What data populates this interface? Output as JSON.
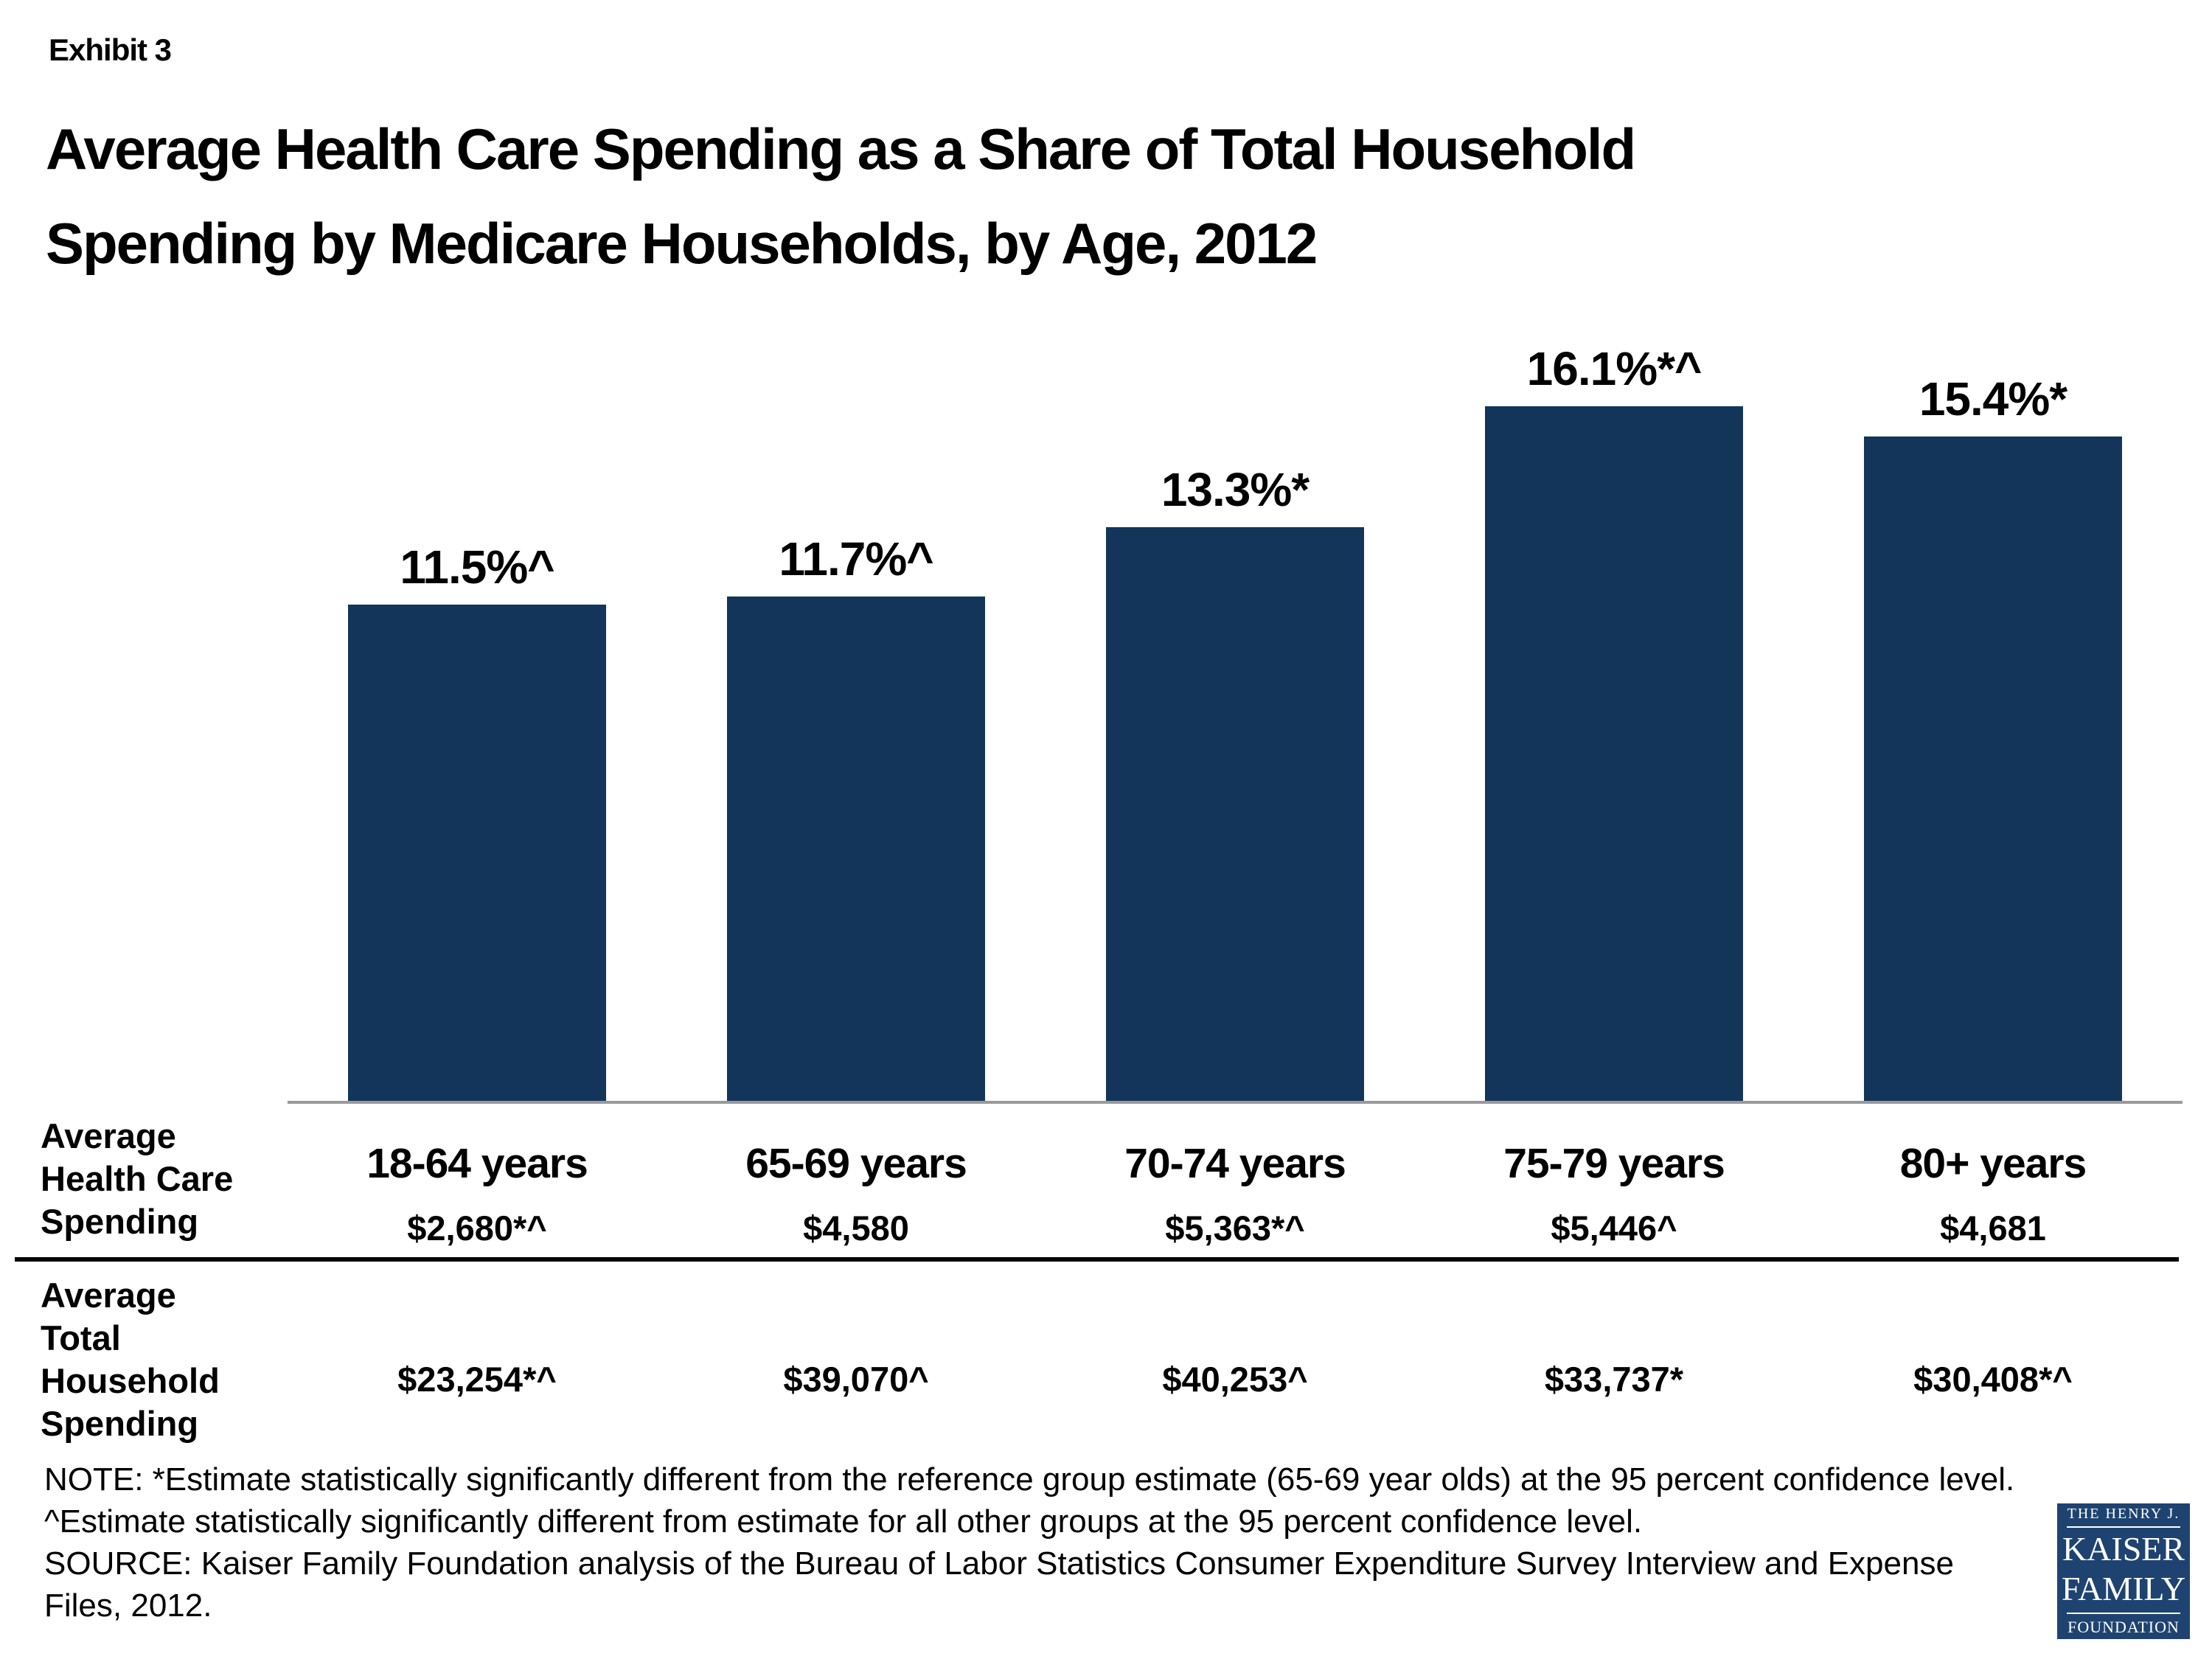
{
  "header": {
    "exhibit": "Exhibit 3",
    "title_line1": "Average Health Care Spending as a Share of Total Household",
    "title_line2": "Spending by Medicare Households, by Age, 2012"
  },
  "chart_data": {
    "type": "bar",
    "title": "Average Health Care Spending as a Share of Total Household Spending by Medicare Households, by Age, 2012",
    "categories": [
      "18-64 years",
      "65-69 years",
      "70-74 years",
      "75-79 years",
      "80+ years"
    ],
    "values": [
      11.5,
      11.7,
      13.3,
      16.1,
      15.4
    ],
    "bar_labels": [
      "11.5%^",
      "11.7%^",
      "13.3%*",
      "16.1%*^",
      "15.4%*"
    ],
    "ylim": [
      0,
      18
    ],
    "grid": false,
    "legend": "none",
    "rows": [
      {
        "header": "Average Health Care Spending",
        "values": [
          "$2,680*^",
          "$4,580",
          "$5,363*^",
          "$5,446^",
          "$4,681"
        ]
      },
      {
        "header": "Average Total Household Spending",
        "values": [
          "$23,254*^",
          "$39,070^",
          "$40,253^",
          "$33,737*",
          "$30,408*^"
        ]
      }
    ]
  },
  "table": {
    "row1_header_lines": [
      "Average",
      "Health Care",
      "Spending"
    ],
    "row2_header_lines": [
      "Average",
      "Total",
      "Household",
      "Spending"
    ]
  },
  "note_text": "NOTE: *Estimate statistically significantly different from the reference group estimate (65-69 year olds) at the 95 percent confidence level. ^Estimate statistically significantly different from estimate for all other groups at the 95 percent confidence level.",
  "source_text": "SOURCE: Kaiser Family Foundation analysis of the Bureau of Labor Statistics Consumer Expenditure Survey Interview and Expense Files, 2012.",
  "logo": {
    "line1": "THE HENRY J.",
    "line2": "KAISER",
    "line3": "FAMILY",
    "line4": "FOUNDATION"
  },
  "colors": {
    "bar": "#133559",
    "axis": "#9a9a9a",
    "divider": "#000000",
    "logo_bg": "#1f4370",
    "text": "#000000"
  }
}
